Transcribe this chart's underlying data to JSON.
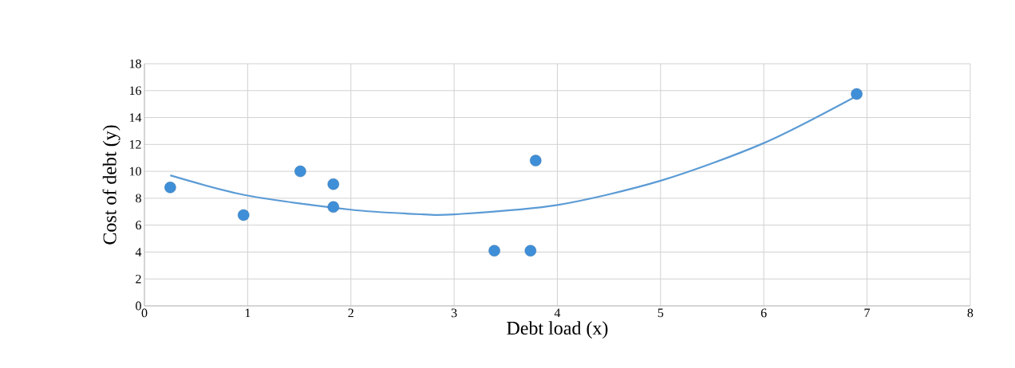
{
  "chart_data": {
    "type": "scatter",
    "xlabel": "Debt load (x)",
    "ylabel": "Cost of debt (y)",
    "xlim": [
      0,
      8
    ],
    "ylim": [
      0,
      18
    ],
    "xticks": [
      0,
      1,
      2,
      3,
      4,
      5,
      6,
      7,
      8
    ],
    "yticks": [
      0,
      2,
      4,
      6,
      8,
      10,
      12,
      14,
      16,
      18
    ],
    "grid": true,
    "marker": "circle",
    "series": [
      {
        "color": "#3f8fd8",
        "x": [
          0.25,
          0.96,
          1.51,
          1.83,
          1.83,
          3.39,
          3.74,
          3.79,
          6.9
        ],
        "values": [
          8.8,
          6.75,
          10.0,
          9.05,
          7.35,
          4.1,
          4.1,
          10.8,
          15.75
        ]
      },
      {
        "type": "line",
        "color": "#5b9bd5",
        "marker": "none",
        "x": [
          0.25,
          1,
          2,
          2.7,
          3,
          4,
          5,
          6,
          6.9
        ],
        "values": [
          9.7,
          8.2,
          7.15,
          6.8,
          6.8,
          7.5,
          9.3,
          12.1,
          15.6
        ]
      }
    ]
  }
}
